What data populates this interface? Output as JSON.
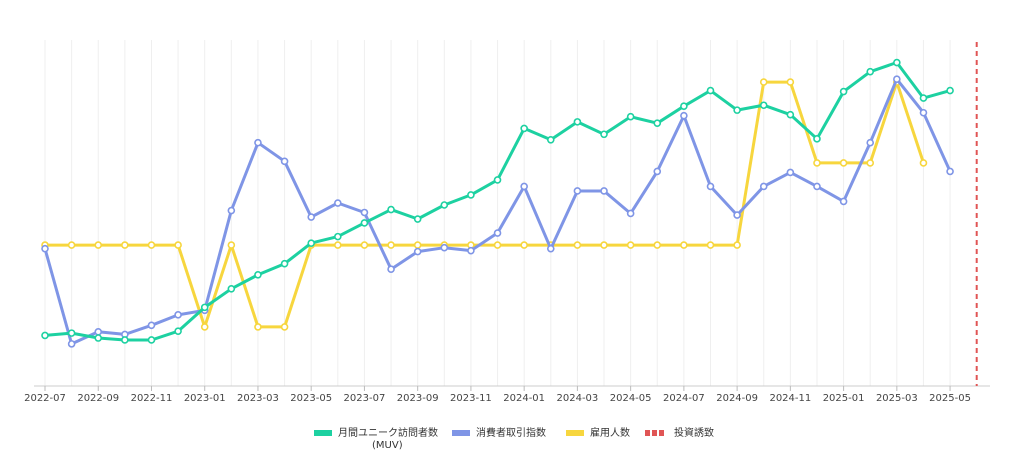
{
  "chart_data": {
    "type": "line",
    "x": [
      "2022-07",
      "2022-08",
      "2022-09",
      "2022-10",
      "2022-11",
      "2022-12",
      "2023-01",
      "2023-02",
      "2023-03",
      "2023-04",
      "2023-05",
      "2023-06",
      "2023-07",
      "2023-08",
      "2023-09",
      "2023-10",
      "2023-11",
      "2023-12",
      "2024-01",
      "2024-02",
      "2024-03",
      "2024-04",
      "2024-05",
      "2024-06",
      "2024-07",
      "2024-08",
      "2024-09",
      "2024-10",
      "2024-11",
      "2024-12",
      "2025-01",
      "2025-02",
      "2025-03",
      "2025-04",
      "2025-05"
    ],
    "x_tick_labels": [
      "2022-07",
      "2022-09",
      "2022-11",
      "2023-01",
      "2023-03",
      "2023-05",
      "2023-07",
      "2023-09",
      "2023-11",
      "2024-01",
      "2024-03",
      "2024-05",
      "2024-07",
      "2024-09",
      "2024-11",
      "2025-01",
      "2025-03",
      "2025-05"
    ],
    "ylim": [
      0,
      100
    ],
    "grid": "vertical",
    "legend_position": "bottom",
    "series": [
      {
        "name": "月間ユニーク訪問者数",
        "name_line2": "(MUV)",
        "color": "#1dd1a1",
        "values": [
          10,
          10.7,
          9.2,
          8.6,
          8.6,
          11.3,
          18.6,
          24.3,
          28.6,
          32,
          38.3,
          40.3,
          44.5,
          48.6,
          45.7,
          50,
          53.1,
          57.7,
          73.5,
          70,
          75.5,
          71.7,
          77.1,
          75.1,
          80.3,
          85.1,
          79.1,
          80.6,
          77.7,
          70.3,
          84.8,
          90.9,
          93.7,
          82.8,
          85.1
        ]
      },
      {
        "name": "消費者取引指数",
        "color": "#7f95e6",
        "values": [
          36.6,
          7.4,
          11.1,
          10.3,
          13.1,
          16.3,
          17.7,
          48.3,
          69.1,
          63.4,
          46.3,
          50.6,
          47.7,
          30.3,
          35.7,
          36.9,
          36,
          41.4,
          55.7,
          36.6,
          54.3,
          54.3,
          47.4,
          60.3,
          77.4,
          55.7,
          46.9,
          55.7,
          60,
          55.7,
          51.1,
          69.1,
          88.6,
          78.3,
          60.3
        ]
      },
      {
        "name": "雇用人数",
        "color": "#f7d63e",
        "values": [
          37.7,
          37.7,
          37.7,
          37.7,
          37.7,
          37.7,
          12.6,
          37.7,
          12.6,
          12.6,
          37.7,
          37.7,
          37.7,
          37.7,
          37.7,
          37.7,
          37.7,
          37.7,
          37.7,
          37.7,
          37.7,
          37.7,
          37.7,
          37.7,
          37.7,
          37.7,
          37.7,
          87.7,
          87.7,
          62.9,
          62.9,
          62.9,
          87.7,
          62.9,
          null
        ]
      }
    ],
    "markers": [
      {
        "name": "投資誘致",
        "color": "#e05555",
        "x": "2025-06"
      }
    ]
  }
}
